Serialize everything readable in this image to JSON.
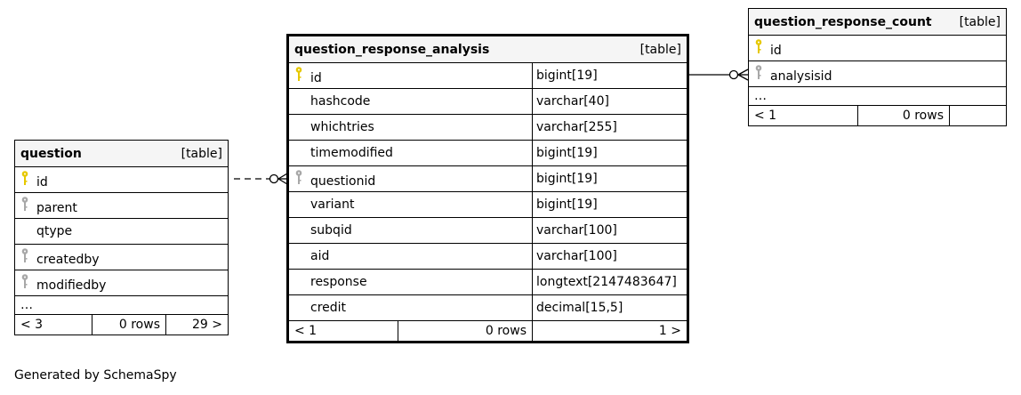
{
  "colors": {
    "primary_key": "#e6c800",
    "foreign_key": "#a8a8a8"
  },
  "tables": {
    "question": {
      "name": "question",
      "type": "[table]",
      "columns": [
        {
          "name": "id",
          "key": "primary"
        },
        {
          "name": "parent",
          "key": "foreign"
        },
        {
          "name": "qtype",
          "key": "none"
        },
        {
          "name": "createdby",
          "key": "foreign"
        },
        {
          "name": "modifiedby",
          "key": "foreign"
        }
      ],
      "ellipsis": "…",
      "footer": {
        "parents": "< 3",
        "rows": "0 rows",
        "children": "29 >"
      }
    },
    "qra": {
      "name": "question_response_analysis",
      "type": "[table]",
      "columns": [
        {
          "name": "id",
          "type": "bigint[19]",
          "key": "primary"
        },
        {
          "name": "hashcode",
          "type": "varchar[40]",
          "key": "none"
        },
        {
          "name": "whichtries",
          "type": "varchar[255]",
          "key": "none"
        },
        {
          "name": "timemodified",
          "type": "bigint[19]",
          "key": "none"
        },
        {
          "name": "questionid",
          "type": "bigint[19]",
          "key": "foreign"
        },
        {
          "name": "variant",
          "type": "bigint[19]",
          "key": "none"
        },
        {
          "name": "subqid",
          "type": "varchar[100]",
          "key": "none"
        },
        {
          "name": "aid",
          "type": "varchar[100]",
          "key": "none"
        },
        {
          "name": "response",
          "type": "longtext[2147483647]",
          "key": "none"
        },
        {
          "name": "credit",
          "type": "decimal[15,5]",
          "key": "none"
        }
      ],
      "footer": {
        "parents": "< 1",
        "rows": "0 rows",
        "children": "1 >"
      }
    },
    "qrc": {
      "name": "question_response_count",
      "type": "[table]",
      "columns": [
        {
          "name": "id",
          "key": "primary"
        },
        {
          "name": "analysisid",
          "key": "foreign"
        }
      ],
      "ellipsis": "…",
      "footer": {
        "parents": "< 1",
        "rows": "0 rows",
        "children": ""
      }
    }
  },
  "generated_by": "Generated by SchemaSpy"
}
